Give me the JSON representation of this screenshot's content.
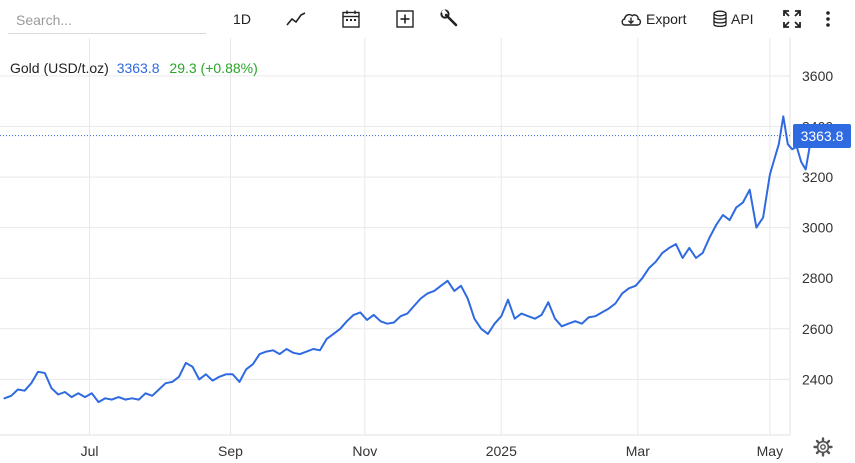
{
  "toolbar": {
    "search_placeholder": "Search...",
    "period_label": "1D",
    "export_label": "Export",
    "api_label": "API",
    "icons": [
      "line-chart-icon",
      "calendar-icon",
      "add-indicator-icon",
      "wrench-icon",
      "cloud-download-icon",
      "database-icon",
      "fullscreen-icon",
      "more-vert-icon"
    ]
  },
  "legend": {
    "name": "Gold (USD/t.oz)",
    "last": "3363.8",
    "change": "29.3 (+0.88%)"
  },
  "price_tag": "3363.8",
  "colors": {
    "line": "#2f6ae0",
    "positive": "#2aa52a",
    "grid": "#e9e9e9"
  },
  "chart_data": {
    "type": "line",
    "title": "Gold (USD/t.oz)",
    "ylim": [
      2180,
      3750
    ],
    "yticks": [
      2400,
      2600,
      2800,
      3000,
      3200,
      3400,
      3600
    ],
    "xtick_labels": [
      "Jul",
      "Sep",
      "Nov",
      "2025",
      "Mar",
      "May"
    ],
    "xtick_dates": [
      "2024-07-01",
      "2024-09-02",
      "2024-11-01",
      "2025-01-01",
      "2025-03-03",
      "2025-05-01"
    ],
    "x_range": [
      "2024-05-22",
      "2025-05-10"
    ],
    "grid": true,
    "last_value": 3363.8,
    "series": [
      {
        "points": [
          [
            "2024-05-24",
            2325
          ],
          [
            "2024-05-27",
            2335
          ],
          [
            "2024-05-30",
            2360
          ],
          [
            "2024-06-02",
            2355
          ],
          [
            "2024-06-05",
            2385
          ],
          [
            "2024-06-08",
            2430
          ],
          [
            "2024-06-11",
            2425
          ],
          [
            "2024-06-14",
            2365
          ],
          [
            "2024-06-17",
            2340
          ],
          [
            "2024-06-20",
            2350
          ],
          [
            "2024-06-23",
            2330
          ],
          [
            "2024-06-26",
            2345
          ],
          [
            "2024-06-29",
            2330
          ],
          [
            "2024-07-02",
            2345
          ],
          [
            "2024-07-05",
            2310
          ],
          [
            "2024-07-08",
            2325
          ],
          [
            "2024-07-11",
            2320
          ],
          [
            "2024-07-14",
            2330
          ],
          [
            "2024-07-17",
            2320
          ],
          [
            "2024-07-20",
            2325
          ],
          [
            "2024-07-23",
            2320
          ],
          [
            "2024-07-26",
            2345
          ],
          [
            "2024-07-29",
            2335
          ],
          [
            "2024-08-01",
            2360
          ],
          [
            "2024-08-04",
            2385
          ],
          [
            "2024-08-07",
            2390
          ],
          [
            "2024-08-10",
            2410
          ],
          [
            "2024-08-13",
            2465
          ],
          [
            "2024-08-16",
            2450
          ],
          [
            "2024-08-19",
            2400
          ],
          [
            "2024-08-22",
            2420
          ],
          [
            "2024-08-25",
            2395
          ],
          [
            "2024-08-28",
            2410
          ],
          [
            "2024-08-31",
            2420
          ],
          [
            "2024-09-03",
            2420
          ],
          [
            "2024-09-06",
            2390
          ],
          [
            "2024-09-09",
            2440
          ],
          [
            "2024-09-12",
            2460
          ],
          [
            "2024-09-15",
            2500
          ],
          [
            "2024-09-18",
            2510
          ],
          [
            "2024-09-21",
            2515
          ],
          [
            "2024-09-24",
            2500
          ],
          [
            "2024-09-27",
            2520
          ],
          [
            "2024-09-30",
            2505
          ],
          [
            "2024-10-03",
            2500
          ],
          [
            "2024-10-06",
            2510
          ],
          [
            "2024-10-09",
            2520
          ],
          [
            "2024-10-12",
            2515
          ],
          [
            "2024-10-15",
            2560
          ],
          [
            "2024-10-18",
            2580
          ],
          [
            "2024-10-21",
            2600
          ],
          [
            "2024-10-24",
            2630
          ],
          [
            "2024-10-27",
            2655
          ],
          [
            "2024-10-30",
            2665
          ],
          [
            "2024-11-02",
            2635
          ],
          [
            "2024-11-05",
            2655
          ],
          [
            "2024-11-08",
            2630
          ],
          [
            "2024-11-11",
            2620
          ],
          [
            "2024-11-14",
            2625
          ],
          [
            "2024-11-17",
            2650
          ],
          [
            "2024-11-20",
            2660
          ],
          [
            "2024-11-23",
            2690
          ],
          [
            "2024-11-26",
            2720
          ],
          [
            "2024-11-29",
            2740
          ],
          [
            "2024-12-02",
            2750
          ],
          [
            "2024-12-05",
            2770
          ],
          [
            "2024-12-08",
            2790
          ],
          [
            "2024-12-11",
            2750
          ],
          [
            "2024-12-14",
            2770
          ],
          [
            "2024-12-17",
            2720
          ],
          [
            "2024-12-20",
            2640
          ],
          [
            "2024-12-23",
            2600
          ],
          [
            "2024-12-26",
            2580
          ],
          [
            "2024-12-29",
            2620
          ],
          [
            "2025-01-01",
            2650
          ],
          [
            "2025-01-04",
            2715
          ],
          [
            "2025-01-07",
            2640
          ],
          [
            "2025-01-10",
            2660
          ],
          [
            "2025-01-13",
            2650
          ],
          [
            "2025-01-16",
            2640
          ],
          [
            "2025-01-19",
            2655
          ],
          [
            "2025-01-22",
            2705
          ],
          [
            "2025-01-25",
            2640
          ],
          [
            "2025-01-28",
            2610
          ],
          [
            "2025-01-31",
            2620
          ],
          [
            "2025-02-03",
            2630
          ],
          [
            "2025-02-06",
            2620
          ],
          [
            "2025-02-09",
            2645
          ],
          [
            "2025-02-12",
            2650
          ],
          [
            "2025-02-15",
            2665
          ],
          [
            "2025-02-18",
            2680
          ],
          [
            "2025-02-21",
            2700
          ],
          [
            "2025-02-24",
            2740
          ],
          [
            "2025-02-27",
            2760
          ],
          [
            "2025-03-02",
            2770
          ],
          [
            "2025-03-05",
            2800
          ],
          [
            "2025-03-08",
            2840
          ],
          [
            "2025-03-11",
            2865
          ],
          [
            "2025-03-14",
            2900
          ],
          [
            "2025-03-17",
            2920
          ],
          [
            "2025-03-20",
            2935
          ],
          [
            "2025-03-23",
            2880
          ],
          [
            "2025-03-26",
            2920
          ],
          [
            "2025-03-29",
            2880
          ],
          [
            "2025-04-01",
            2900
          ],
          [
            "2025-04-04",
            2960
          ],
          [
            "2025-04-07",
            3010
          ],
          [
            "2025-04-10",
            3050
          ],
          [
            "2025-04-13",
            3030
          ],
          [
            "2025-04-16",
            3080
          ],
          [
            "2025-04-19",
            3100
          ],
          [
            "2025-04-22",
            3150
          ],
          [
            "2025-04-25",
            3000
          ],
          [
            "2025-04-28",
            3040
          ],
          [
            "2025-05-01",
            3210
          ],
          [
            "2025-05-03",
            3270
          ],
          [
            "2025-05-05",
            3330
          ],
          [
            "2025-05-07",
            3440
          ],
          [
            "2025-05-09",
            3330
          ],
          [
            "2025-05-11",
            3310
          ],
          [
            "2025-05-13",
            3320
          ],
          [
            "2025-05-15",
            3260
          ],
          [
            "2025-05-17",
            3230
          ],
          [
            "2025-05-19",
            3330
          ],
          [
            "2025-05-21",
            3363.8
          ]
        ]
      }
    ]
  }
}
